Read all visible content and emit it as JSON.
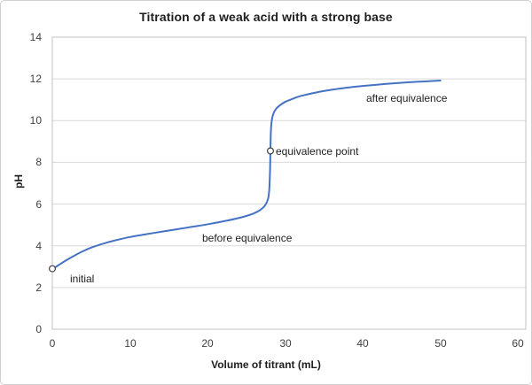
{
  "chart_data": {
    "type": "line",
    "title": "Titration of a weak acid with a strong base",
    "xlabel": "Volume of titrant (mL)",
    "ylabel": "pH",
    "xlim": [
      0,
      61
    ],
    "ylim": [
      0,
      14
    ],
    "x_ticks": [
      0,
      10,
      20,
      30,
      40,
      50,
      60
    ],
    "y_ticks": [
      0,
      2,
      4,
      6,
      8,
      10,
      12,
      14
    ],
    "grid": "horizontal-only",
    "legend": "none",
    "colors": {
      "line": "#4472c4",
      "gridline": "#d9d9d9",
      "plot_border": "#c0c0c0",
      "marker_stroke": "#404040",
      "marker_fill": "#ffffff",
      "text": "#1f1f1f"
    },
    "series": [
      {
        "name": "titration curve",
        "x": [
          0,
          0.5,
          1,
          2,
          3,
          4,
          5,
          6,
          7,
          8,
          10,
          12,
          14,
          16,
          18,
          20,
          22,
          24,
          25,
          26,
          26.8,
          27.4,
          27.8,
          27.95,
          28.05,
          28.1,
          28.15,
          28.25,
          28.45,
          28.8,
          29.2,
          30,
          31,
          32,
          34,
          36,
          38,
          40,
          43,
          46,
          48,
          50
        ],
        "y": [
          2.88,
          3.0,
          3.12,
          3.35,
          3.56,
          3.75,
          3.91,
          4.04,
          4.15,
          4.25,
          4.42,
          4.55,
          4.67,
          4.79,
          4.91,
          5.03,
          5.17,
          5.33,
          5.43,
          5.56,
          5.72,
          5.93,
          6.25,
          6.7,
          7.6,
          8.55,
          9.4,
          9.95,
          10.3,
          10.55,
          10.7,
          10.9,
          11.05,
          11.18,
          11.35,
          11.48,
          11.58,
          11.66,
          11.76,
          11.84,
          11.88,
          11.92
        ]
      }
    ],
    "markers": [
      {
        "x": 0,
        "y": 2.9,
        "label": "initial"
      },
      {
        "x": 28.1,
        "y": 8.55,
        "label": "equivalence point"
      }
    ],
    "annotations": [
      {
        "text": "initial",
        "x": 2.3,
        "y": 2.4
      },
      {
        "text": "before equivalence",
        "x": 19.3,
        "y": 4.35
      },
      {
        "text": "equivalence point",
        "x": 28.8,
        "y": 8.5
      },
      {
        "text": "after equivalence",
        "x": 40.4,
        "y": 11.05
      }
    ]
  }
}
